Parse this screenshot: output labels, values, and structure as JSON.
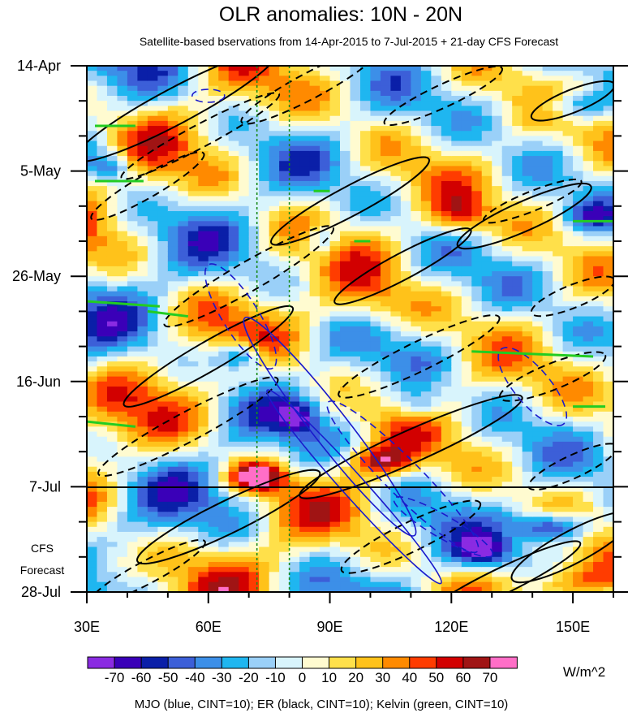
{
  "chart_data": {
    "type": "heatmap",
    "title": "OLR anomalies: 10N - 20N",
    "subtitle": "Satellite-based bservations from 14-Apr-2015 to 7-Jul-2015 + 21-day CFS Forecast",
    "x_axis": {
      "ticks": [
        30,
        60,
        90,
        120,
        150
      ],
      "tick_labels": [
        "30E",
        "60E",
        "90E",
        "120E",
        "150E"
      ],
      "range": [
        30,
        160
      ]
    },
    "y_axis": {
      "tick_labels": [
        "14-Apr",
        "5-May",
        "26-May",
        "16-Jun",
        "7-Jul",
        "28-Jul"
      ],
      "ticks_days": [
        0,
        21,
        42,
        63,
        84,
        105
      ],
      "range_days": [
        0,
        105
      ]
    },
    "forecast_label": [
      "CFS",
      "Forecast"
    ],
    "forecast_start_label": "7-Jul",
    "reference_longitudes": [
      72,
      80
    ],
    "colorbar": {
      "levels": [
        -70,
        -60,
        -50,
        -40,
        -30,
        -20,
        -10,
        0,
        10,
        20,
        30,
        40,
        50,
        60,
        70
      ],
      "labels": [
        "-70",
        "-60",
        "-50",
        "-40",
        "-30",
        "-20",
        "-10",
        "0",
        "10",
        "20",
        "30",
        "40",
        "50",
        "60",
        "70"
      ],
      "colors": [
        "#8a2be2",
        "#3a00b8",
        "#0a1fa8",
        "#3c5fd8",
        "#3c8fe8",
        "#1fb6f0",
        "#9ad0f8",
        "#d8f4fc",
        "#fffbd0",
        "#ffe04a",
        "#ffc21a",
        "#ff8a00",
        "#ff3c00",
        "#d20000",
        "#a01414",
        "#ff6ec7"
      ],
      "units": "W/m^2"
    },
    "overlay_note": "MJO (blue, CINT=10); ER (black, CINT=10); Kelvin (green, CINT=10)",
    "overlay_colors": {
      "MJO": "#1a1acc",
      "ER": "#000000",
      "Kelvin": "#22cc22"
    }
  }
}
